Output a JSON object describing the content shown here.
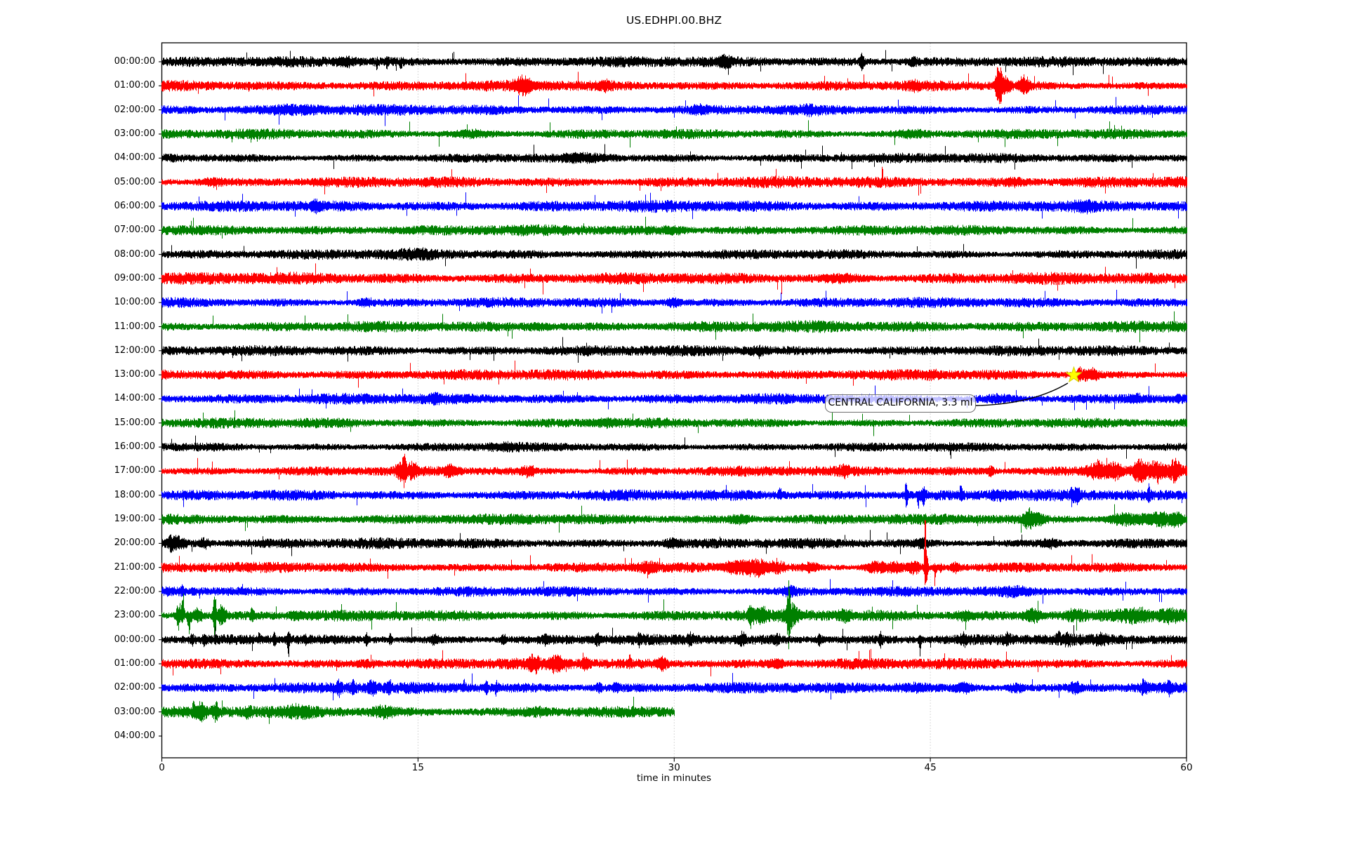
{
  "title": "US.EDHPI.00.BHZ",
  "xlabel": "time in minutes",
  "annotation": {
    "text": "CENTRAL CALIFORNIA, 3.3 ml"
  },
  "chart_data": {
    "type": "line",
    "subtype": "helicorder-seismogram",
    "title": "US.EDHPI.00.BHZ",
    "xlabel": "time in minutes",
    "ylabel": "",
    "x_range_minutes": [
      0,
      60
    ],
    "x_ticks": [
      0,
      15,
      30,
      45,
      60
    ],
    "gridlines_at_minutes": [
      15,
      30,
      45
    ],
    "grid_style": "dotted-vertical",
    "legend": "none",
    "color_cycle": [
      "#000000",
      "#ff0000",
      "#0000ff",
      "#008000"
    ],
    "frame_color": "#000000",
    "grid_color": "#b3b3b3",
    "event_marker": {
      "label": "CENTRAL CALIFORNIA, 3.3 ml",
      "row_label": "13:00:00",
      "row_index": 13,
      "minute": 53.4,
      "shape": "star",
      "fill": "#ffff00",
      "edge": "#d4d400"
    },
    "rows": [
      {
        "label": "00:00:00",
        "color": "#000000",
        "amp": 5.0,
        "xmax": 60,
        "events": [
          {
            "m": 10.8,
            "a": 4,
            "w": 0.6
          },
          {
            "m": 12.6,
            "a": 9,
            "w": 0.08,
            "dir": "down"
          },
          {
            "m": 13.2,
            "a": 6,
            "w": 0.1
          },
          {
            "m": 14.0,
            "a": 8,
            "w": 0.07,
            "dir": "down"
          },
          {
            "m": 33,
            "a": 5,
            "w": 0.3
          },
          {
            "m": 41,
            "a": 9,
            "w": 0.12
          },
          {
            "m": 44,
            "a": 4,
            "w": 0.3
          }
        ]
      },
      {
        "label": "01:00:00",
        "color": "#ff0000",
        "amp": 5.0,
        "xmax": 60,
        "events": [
          {
            "m": 5.1,
            "a": 7,
            "w": 0.06,
            "dir": "down"
          },
          {
            "m": 21.2,
            "a": 9,
            "w": 0.5
          },
          {
            "m": 26,
            "a": 4,
            "w": 0.3
          },
          {
            "m": 44,
            "a": 4,
            "w": 0.4
          },
          {
            "m": 49.0,
            "a": 26,
            "w": 0.18
          },
          {
            "m": 49.3,
            "a": 12,
            "w": 0.35
          },
          {
            "m": 50.5,
            "a": 11,
            "w": 0.28
          }
        ]
      },
      {
        "label": "02:00:00",
        "color": "#0000ff",
        "amp": 5.2,
        "xmax": 60,
        "events": [
          {
            "m": 8,
            "a": 3,
            "w": 1.5
          },
          {
            "m": 31.5,
            "a": 4,
            "w": 0.4
          },
          {
            "m": 38,
            "a": 3,
            "w": 0.5
          }
        ]
      },
      {
        "label": "03:00:00",
        "color": "#008000",
        "amp": 5.0,
        "xmax": 60,
        "events": [
          {
            "m": 18,
            "a": 3,
            "w": 1.0
          },
          {
            "m": 44,
            "a": 3,
            "w": 0.8
          }
        ]
      },
      {
        "label": "04:00:00",
        "color": "#000000",
        "amp": 4.8,
        "xmax": 60,
        "events": [
          {
            "m": 25,
            "a": 2.5,
            "w": 1.2
          }
        ]
      },
      {
        "label": "05:00:00",
        "color": "#ff0000",
        "amp": 5.4,
        "xmax": 60,
        "events": [
          {
            "m": 3,
            "a": 3,
            "w": 0.8
          },
          {
            "m": 50,
            "a": 3,
            "w": 0.6
          }
        ]
      },
      {
        "label": "06:00:00",
        "color": "#0000ff",
        "amp": 5.4,
        "xmax": 60,
        "events": [
          {
            "m": 9,
            "a": 4,
            "w": 0.3
          },
          {
            "m": 54,
            "a": 3,
            "w": 0.5
          }
        ]
      },
      {
        "label": "07:00:00",
        "color": "#008000",
        "amp": 5.0,
        "xmax": 60,
        "events": [
          {
            "m": 30,
            "a": 3,
            "w": 0.7
          }
        ]
      },
      {
        "label": "08:00:00",
        "color": "#000000",
        "amp": 5.0,
        "xmax": 60,
        "events": [
          {
            "m": 15,
            "a": 2.5,
            "w": 1.0
          }
        ]
      },
      {
        "label": "09:00:00",
        "color": "#ff0000",
        "amp": 6.0,
        "xmax": 60,
        "events": [
          {
            "m": 40,
            "a": 3,
            "w": 1.0
          }
        ]
      },
      {
        "label": "10:00:00",
        "color": "#0000ff",
        "amp": 5.2,
        "xmax": 60,
        "events": [
          {
            "m": 12,
            "a": 4,
            "w": 0.4
          },
          {
            "m": 30,
            "a": 4,
            "w": 0.5
          }
        ]
      },
      {
        "label": "11:00:00",
        "color": "#008000",
        "amp": 5.5,
        "xmax": 60,
        "events": [
          {
            "m": 22,
            "a": 3,
            "w": 0.8
          }
        ]
      },
      {
        "label": "12:00:00",
        "color": "#000000",
        "amp": 5.0,
        "xmax": 60,
        "events": [
          {
            "m": 35,
            "a": 3,
            "w": 0.6
          }
        ]
      },
      {
        "label": "13:00:00",
        "color": "#ff0000",
        "amp": 5.0,
        "xmax": 60,
        "events": [
          {
            "m": 45,
            "a": 3,
            "w": 0.5
          },
          {
            "m": 53.9,
            "a": 9,
            "w": 0.35
          },
          {
            "m": 54.6,
            "a": 6,
            "w": 0.3
          }
        ]
      },
      {
        "label": "14:00:00",
        "color": "#0000ff",
        "amp": 5.2,
        "xmax": 60,
        "events": [
          {
            "m": 16,
            "a": 4,
            "w": 0.3
          },
          {
            "m": 49,
            "a": 3.5,
            "w": 0.8
          },
          {
            "m": 57,
            "a": 4,
            "w": 0.4
          }
        ]
      },
      {
        "label": "15:00:00",
        "color": "#008000",
        "amp": 5.0,
        "xmax": 60,
        "events": [
          {
            "m": 26,
            "a": 3,
            "w": 0.8
          }
        ]
      },
      {
        "label": "16:00:00",
        "color": "#000000",
        "amp": 4.6,
        "xmax": 60,
        "events": [
          {
            "m": 20,
            "a": 2.5,
            "w": 1.0
          }
        ]
      },
      {
        "label": "17:00:00",
        "color": "#ff0000",
        "amp": 5.0,
        "xmax": 60,
        "events": [
          {
            "m": 13.9,
            "a": 9,
            "w": 0.2
          },
          {
            "m": 14.2,
            "a": 21,
            "w": 0.12
          },
          {
            "m": 14.7,
            "a": 9,
            "w": 0.3
          },
          {
            "m": 16.9,
            "a": 6,
            "w": 0.4
          },
          {
            "m": 21.5,
            "a": 5,
            "w": 0.4
          },
          {
            "m": 40,
            "a": 5,
            "w": 0.3
          },
          {
            "m": 48.5,
            "a": 6,
            "w": 0.2
          },
          {
            "m": 54.8,
            "a": 12,
            "w": 0.5
          },
          {
            "m": 55.8,
            "a": 10,
            "w": 0.4
          },
          {
            "m": 57.3,
            "a": 14,
            "w": 0.45
          },
          {
            "m": 58.3,
            "a": 11,
            "w": 0.4
          },
          {
            "m": 59.3,
            "a": 12,
            "w": 0.3
          }
        ]
      },
      {
        "label": "18:00:00",
        "color": "#0000ff",
        "amp": 5.2,
        "xmax": 60,
        "events": [
          {
            "m": 36.2,
            "a": 9,
            "w": 0.1,
            "dir": "up"
          },
          {
            "m": 43.6,
            "a": 28,
            "w": 0.07
          },
          {
            "m": 44.3,
            "a": 24,
            "w": 0.06,
            "dir": "down"
          },
          {
            "m": 44.6,
            "a": 10,
            "w": 0.15
          },
          {
            "m": 46.8,
            "a": 17,
            "w": 0.06,
            "dir": "up"
          },
          {
            "m": 49,
            "a": 4,
            "w": 0.5
          },
          {
            "m": 53.3,
            "a": 11,
            "w": 0.1
          },
          {
            "m": 53.6,
            "a": 8,
            "w": 0.15
          },
          {
            "m": 57.8,
            "a": 13,
            "w": 0.08
          }
        ]
      },
      {
        "label": "19:00:00",
        "color": "#008000",
        "amp": 5.0,
        "xmax": 60,
        "events": [
          {
            "m": 34,
            "a": 4,
            "w": 0.6
          },
          {
            "m": 50.7,
            "a": 12,
            "w": 0.25
          },
          {
            "m": 51.2,
            "a": 6,
            "w": 0.4
          },
          {
            "m": 56.5,
            "a": 6,
            "w": 1.2
          },
          {
            "m": 58.5,
            "a": 8,
            "w": 0.8
          },
          {
            "m": 59.5,
            "a": 7,
            "w": 0.4
          }
        ]
      },
      {
        "label": "20:00:00",
        "color": "#000000",
        "amp": 5.0,
        "xmax": 60,
        "events": [
          {
            "m": 0.6,
            "a": 9,
            "w": 0.25
          },
          {
            "m": 1.1,
            "a": 6,
            "w": 0.3
          },
          {
            "m": 2.5,
            "a": 5,
            "w": 0.3
          },
          {
            "m": 29.9,
            "a": 4,
            "w": 0.4
          },
          {
            "m": 44.5,
            "a": 5,
            "w": 0.3
          },
          {
            "m": 52,
            "a": 4,
            "w": 0.5
          }
        ]
      },
      {
        "label": "21:00:00",
        "color": "#ff0000",
        "amp": 5.0,
        "xmax": 60,
        "events": [
          {
            "m": 28.5,
            "a": 6,
            "w": 0.5
          },
          {
            "m": 33.8,
            "a": 8,
            "w": 0.8
          },
          {
            "m": 34.9,
            "a": 9,
            "w": 0.6
          },
          {
            "m": 36,
            "a": 6,
            "w": 0.5
          },
          {
            "m": 38,
            "a": 5,
            "w": 0.4
          },
          {
            "m": 41.8,
            "a": 7,
            "w": 0.6
          },
          {
            "m": 43,
            "a": 6,
            "w": 0.5
          },
          {
            "m": 44.05,
            "a": 8,
            "w": 0.3
          },
          {
            "m": 44.7,
            "a": 80,
            "w": 0.045,
            "dir": "up"
          },
          {
            "m": 44.75,
            "a": 22,
            "w": 0.1
          },
          {
            "m": 45.3,
            "a": 16,
            "w": 0.07,
            "dir": "down"
          },
          {
            "m": 45.6,
            "a": 11,
            "w": 0.07,
            "dir": "down"
          },
          {
            "m": 46.5,
            "a": 5,
            "w": 0.3
          }
        ]
      },
      {
        "label": "22:00:00",
        "color": "#0000ff",
        "amp": 5.2,
        "xmax": 60,
        "events": [
          {
            "m": 1.2,
            "a": 7,
            "w": 0.1,
            "dir": "up"
          },
          {
            "m": 36.8,
            "a": 4,
            "w": 0.4
          },
          {
            "m": 50,
            "a": 3.5,
            "w": 0.8
          }
        ]
      },
      {
        "label": "23:00:00",
        "color": "#008000",
        "amp": 5.8,
        "xmax": 60,
        "events": [
          {
            "m": 1.0,
            "a": 20,
            "w": 0.15
          },
          {
            "m": 1.25,
            "a": 35,
            "w": 0.08,
            "dir": "up"
          },
          {
            "m": 1.6,
            "a": 22,
            "w": 0.12,
            "dir": "down"
          },
          {
            "m": 2.1,
            "a": 8,
            "w": 0.3
          },
          {
            "m": 3.1,
            "a": 28,
            "w": 0.1
          },
          {
            "m": 3.5,
            "a": 12,
            "w": 0.25
          },
          {
            "m": 5.3,
            "a": 8,
            "w": 0.12
          },
          {
            "m": 8,
            "a": 4,
            "w": 0.5
          },
          {
            "m": 34.5,
            "a": 14,
            "w": 0.15
          },
          {
            "m": 35.1,
            "a": 8,
            "w": 0.3
          },
          {
            "m": 36.7,
            "a": 40,
            "w": 0.1
          },
          {
            "m": 36.9,
            "a": 14,
            "w": 0.3
          },
          {
            "m": 40,
            "a": 5,
            "w": 0.4
          },
          {
            "m": 47,
            "a": 4,
            "w": 0.5
          },
          {
            "m": 51,
            "a": 7,
            "w": 0.5
          },
          {
            "m": 53.5,
            "a": 5,
            "w": 0.5
          },
          {
            "m": 57,
            "a": 6,
            "w": 1.0
          },
          {
            "m": 59,
            "a": 6,
            "w": 0.5
          }
        ]
      },
      {
        "label": "00:00:00",
        "color": "#000000",
        "amp": 5.0,
        "xmax": 60,
        "events": [
          {
            "m": 1.8,
            "a": 7,
            "w": 0.08
          },
          {
            "m": 2.5,
            "a": 6,
            "w": 0.08
          },
          {
            "m": 5.7,
            "a": 9,
            "w": 0.07,
            "dir": "up"
          },
          {
            "m": 6.6,
            "a": 7,
            "w": 0.08
          },
          {
            "m": 7.4,
            "a": 26,
            "w": 0.06,
            "dir": "down"
          },
          {
            "m": 7.45,
            "a": 8,
            "w": 0.12
          },
          {
            "m": 8.4,
            "a": 8,
            "w": 0.07
          },
          {
            "m": 12.0,
            "a": 10,
            "w": 0.07
          },
          {
            "m": 13.4,
            "a": 8,
            "w": 0.08
          },
          {
            "m": 16,
            "a": 5,
            "w": 0.2
          },
          {
            "m": 20,
            "a": 6,
            "w": 0.15
          },
          {
            "m": 22.5,
            "a": 6,
            "w": 0.12
          },
          {
            "m": 25.5,
            "a": 6,
            "w": 0.15
          },
          {
            "m": 28,
            "a": 6,
            "w": 0.12
          },
          {
            "m": 31,
            "a": 6,
            "w": 0.2
          },
          {
            "m": 34,
            "a": 8,
            "w": 0.15
          },
          {
            "m": 36,
            "a": 6,
            "w": 0.2
          },
          {
            "m": 38.5,
            "a": 6,
            "w": 0.15
          },
          {
            "m": 42.1,
            "a": 10,
            "w": 0.1
          },
          {
            "m": 44.4,
            "a": 22,
            "w": 0.06,
            "dir": "down"
          },
          {
            "m": 47,
            "a": 7,
            "w": 0.2
          },
          {
            "m": 49.5,
            "a": 6,
            "w": 0.2
          },
          {
            "m": 52.5,
            "a": 13,
            "w": 0.1,
            "dir": "up"
          },
          {
            "m": 53,
            "a": 7,
            "w": 0.2
          },
          {
            "m": 55,
            "a": 5,
            "w": 0.3
          }
        ]
      },
      {
        "label": "01:00:00",
        "color": "#ff0000",
        "amp": 5.2,
        "xmax": 60,
        "events": [
          {
            "m": 12,
            "a": 3,
            "w": 0.5
          },
          {
            "m": 21.8,
            "a": 8,
            "w": 0.3
          },
          {
            "m": 23.1,
            "a": 9,
            "w": 0.4
          },
          {
            "m": 24.8,
            "a": 7,
            "w": 0.2
          },
          {
            "m": 27.4,
            "a": 9,
            "w": 0.08,
            "dir": "up"
          },
          {
            "m": 29.3,
            "a": 7,
            "w": 0.25
          },
          {
            "m": 36,
            "a": 4,
            "w": 0.4
          }
        ]
      },
      {
        "label": "02:00:00",
        "color": "#0000ff",
        "amp": 5.2,
        "xmax": 60,
        "events": [
          {
            "m": 10.4,
            "a": 7,
            "w": 0.15
          },
          {
            "m": 11.2,
            "a": 7,
            "w": 0.15
          },
          {
            "m": 12.3,
            "a": 7,
            "w": 0.25
          },
          {
            "m": 13.3,
            "a": 7,
            "w": 0.15
          },
          {
            "m": 17.7,
            "a": 9,
            "w": 0.08,
            "dir": "up"
          },
          {
            "m": 19.0,
            "a": 8,
            "w": 0.1
          },
          {
            "m": 19.6,
            "a": 7,
            "w": 0.08
          },
          {
            "m": 25.6,
            "a": 6,
            "w": 0.15
          },
          {
            "m": 26.6,
            "a": 6,
            "w": 0.15
          },
          {
            "m": 44,
            "a": 4,
            "w": 1.0
          },
          {
            "m": 47,
            "a": 5,
            "w": 0.5
          },
          {
            "m": 50,
            "a": 5,
            "w": 0.5
          },
          {
            "m": 53.5,
            "a": 7,
            "w": 0.3
          },
          {
            "m": 57.5,
            "a": 7,
            "w": 0.2
          },
          {
            "m": 59,
            "a": 6,
            "w": 0.2
          }
        ]
      },
      {
        "label": "03:00:00",
        "color": "#008000",
        "amp": 5.5,
        "xmax": 30,
        "events": [
          {
            "m": 1.9,
            "a": 16,
            "w": 0.08,
            "dir": "up"
          },
          {
            "m": 2.3,
            "a": 9,
            "w": 0.25
          },
          {
            "m": 3.2,
            "a": 12,
            "w": 0.15
          },
          {
            "m": 5.1,
            "a": 7,
            "w": 0.2
          },
          {
            "m": 8,
            "a": 4,
            "w": 0.8
          },
          {
            "m": 13,
            "a": 5,
            "w": 0.6
          },
          {
            "m": 22,
            "a": 3,
            "w": 0.8
          }
        ]
      },
      {
        "label": "04:00:00",
        "color": "#000000",
        "amp": 0,
        "xmax": 0,
        "events": []
      }
    ]
  }
}
